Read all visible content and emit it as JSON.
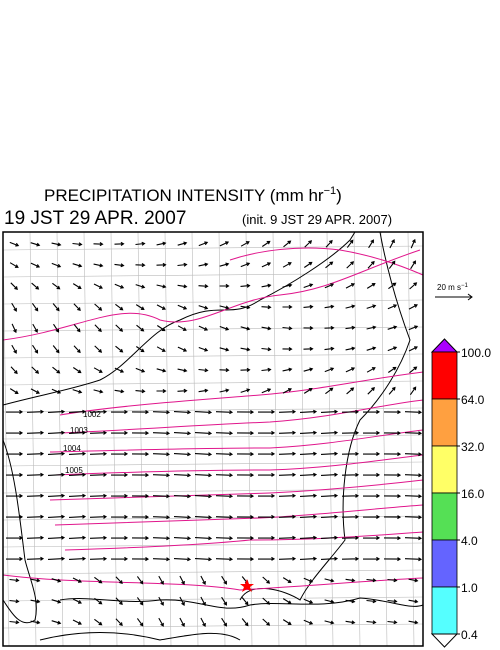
{
  "title": {
    "text": "PRECIPITATION INTENSITY (mm hr",
    "exponent": "−1",
    "close": ")"
  },
  "valid_time": "19 JST 29 APR. 2007",
  "init_time": "(init. 9 JST 29 APR. 2007)",
  "wind_scale": {
    "text": "20 m s",
    "exponent": "−1"
  },
  "isobar_labels": [
    "1002",
    "1003",
    "1004",
    "1005"
  ],
  "colorbar": {
    "levels": [
      {
        "value": 100,
        "label": "100.0"
      },
      {
        "value": 64,
        "label": "64.0"
      },
      {
        "value": 32,
        "label": "32.0"
      },
      {
        "value": 16,
        "label": "16.0"
      },
      {
        "value": 4,
        "label": "4.0"
      },
      {
        "value": 1,
        "label": "1.0"
      },
      0.4
    ],
    "colors": [
      "#ff0000",
      "#ffa040",
      "#ffff66",
      "#55e055",
      "#6464ff",
      "#55ffff"
    ],
    "over_color": "#aa00ff",
    "under_color": "#ffffff"
  }
}
